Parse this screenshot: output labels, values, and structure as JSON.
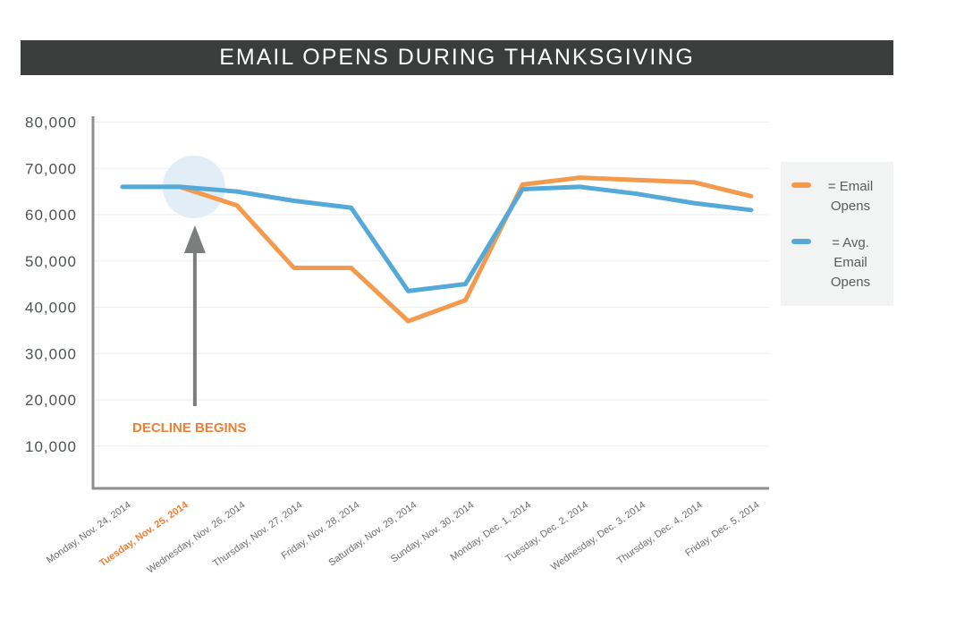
{
  "chart_data": {
    "type": "line",
    "title": "EMAIL OPENS DURING THANKSGIVING",
    "xlabel": "",
    "ylabel": "",
    "categories": [
      "Monday, Nov. 24, 2014",
      "Tuesday, Nov. 25, 2014",
      "Wednesday, Nov. 26, 2014",
      "Thursday, Nov. 27, 2014",
      "Friday, Nov. 28, 2014",
      "Saturday, Nov. 29, 2014",
      "Sunday, Nov. 30, 2014",
      "Monday, Dec. 1, 2014",
      "Tuesday, Dec. 2, 2014",
      "Wednesday, Dec. 3, 2014",
      "Thursday, Dec. 4, 2014",
      "Friday, Dec. 5, 2014"
    ],
    "highlighted_category": "Tuesday, Nov. 25, 2014",
    "yticks": [
      10000,
      20000,
      30000,
      40000,
      50000,
      60000,
      70000,
      80000
    ],
    "ytick_labels": [
      "10,000",
      "20,000",
      "30,000",
      "40,000",
      "50,000",
      "60,000",
      "70,000",
      "80,000"
    ],
    "ylim": [
      0,
      80000
    ],
    "grid": true,
    "legend_position": "right",
    "series": [
      {
        "name": "= Email Opens",
        "legend_lines": [
          "= Email",
          "Opens"
        ],
        "color": "#f39a4c",
        "values": [
          null,
          66000,
          62000,
          48500,
          48500,
          37000,
          41500,
          66500,
          68000,
          67500,
          67000,
          64000
        ]
      },
      {
        "name": "= Avg. Email Opens",
        "legend_lines": [
          "= Avg.",
          "Email",
          "Opens"
        ],
        "color": "#54a9d8",
        "values": [
          66000,
          66000,
          65000,
          63000,
          61500,
          43500,
          45000,
          65500,
          66000,
          64500,
          62500,
          61000
        ]
      }
    ],
    "annotation": {
      "text": "DECLINE BEGINS",
      "category_index": 1,
      "value": 66000,
      "text_color": "#ef7f31",
      "arrow_color": "#7c7d7d",
      "highlight_color": "#dcebf7"
    },
    "colors": {
      "axis": "#8e9090",
      "grid": "#eeeeee",
      "tick_label": "#4f5353",
      "x_label": "#6b6e6e",
      "title_bg": "#3b3d3d"
    }
  }
}
